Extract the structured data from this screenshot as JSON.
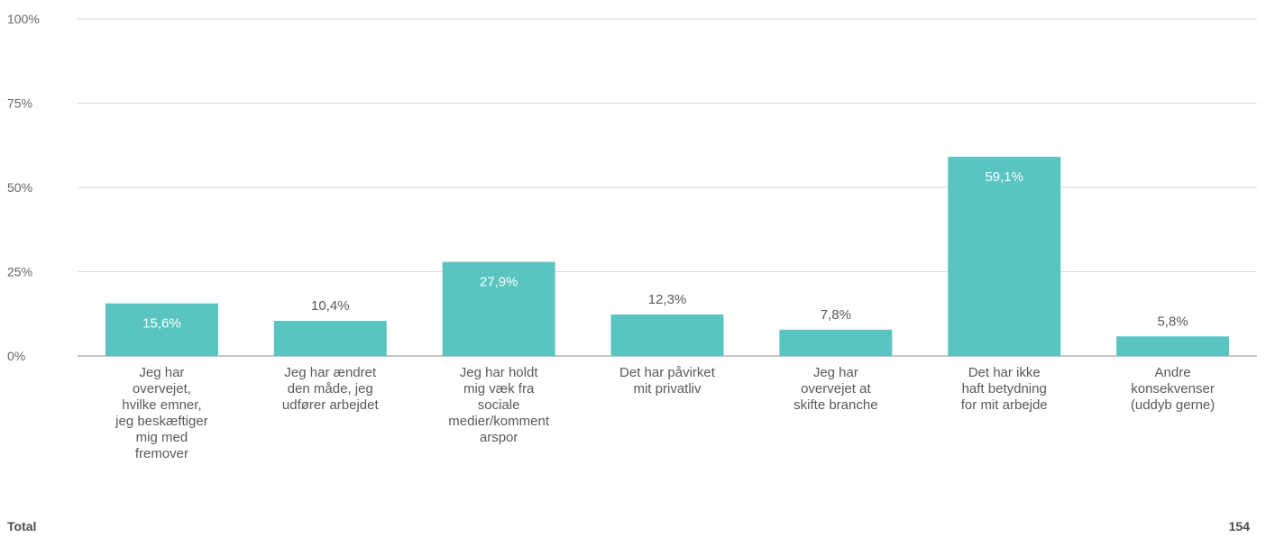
{
  "chart_data": {
    "type": "bar",
    "categories": [
      [
        "Jeg har",
        "overvejet,",
        "hvilke emner,",
        "jeg beskæftiger",
        "mig med",
        "fremover"
      ],
      [
        "Jeg har ændret",
        "den måde, jeg",
        "udfører arbejdet"
      ],
      [
        "Jeg har holdt",
        "mig væk fra",
        "sociale",
        "medier/komment",
        "arspor"
      ],
      [
        "Det har påvirket",
        "mit privatliv"
      ],
      [
        "Jeg har",
        "overvejet at",
        "skifte branche"
      ],
      [
        "Det har ikke",
        "haft betydning",
        "for mit arbejde"
      ],
      [
        "Andre",
        "konsekvenser",
        "(uddyb gerne)"
      ]
    ],
    "values": [
      15.6,
      10.4,
      27.9,
      12.3,
      7.8,
      59.1,
      5.8
    ],
    "value_labels": [
      "15,6%",
      "10,4%",
      "27,9%",
      "12,3%",
      "7,8%",
      "59,1%",
      "5,8%"
    ],
    "ylim": [
      0,
      100
    ],
    "yticks": [
      0,
      25,
      50,
      75,
      100
    ],
    "ytick_labels": [
      "0%",
      "25%",
      "50%",
      "75%",
      "100%"
    ],
    "grid": true,
    "bar_color": "#59c4c0"
  },
  "footer": {
    "total_label": "Total",
    "total_value": "154"
  }
}
